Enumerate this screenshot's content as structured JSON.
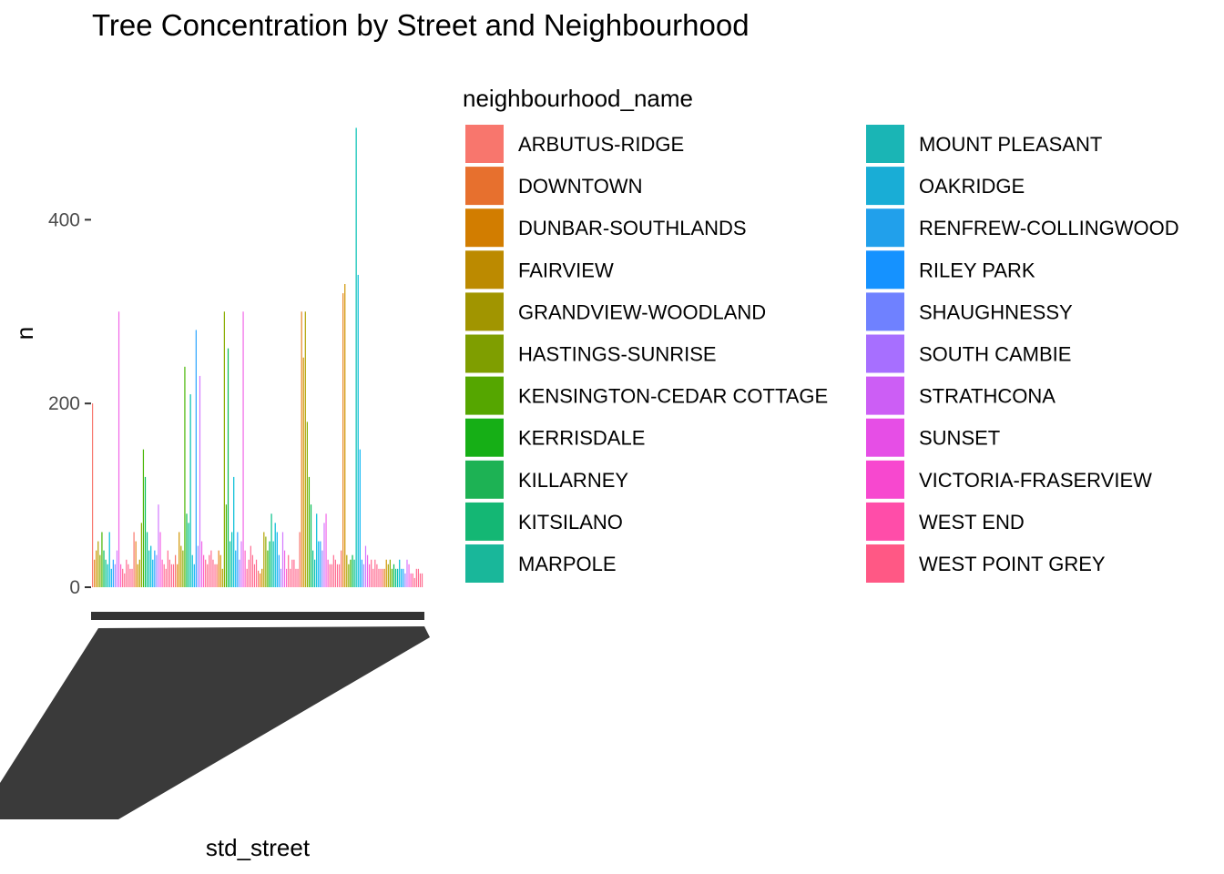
{
  "chart_data": {
    "type": "bar",
    "title": "Tree Concentration by Street and Neighbourhood",
    "xlabel": "std_street",
    "ylabel": "n",
    "ylim": [
      0,
      550
    ],
    "yticks": [
      0,
      200,
      400
    ],
    "legend_title": "neighbourhood_name",
    "legend_position": "right",
    "grid": false,
    "x_tick_labels_overplotted": true,
    "series": [
      {
        "name": "ARBUTUS-RIDGE",
        "color": "#F8766D",
        "values": [
          200,
          60,
          35,
          25,
          18,
          60,
          40,
          20
        ]
      },
      {
        "name": "DOWNTOWN",
        "color": "#E7851E",
        "values": [
          30,
          50,
          25,
          40,
          15,
          300,
          320,
          20
        ]
      },
      {
        "name": "DUNBAR-SOUTHLANDS",
        "color": "#D09400",
        "values": [
          40,
          25,
          60,
          35,
          20,
          250,
          330,
          30
        ]
      },
      {
        "name": "FAIRVIEW",
        "color": "#B2A100",
        "values": [
          50,
          30,
          45,
          20,
          60,
          300,
          35,
          25
        ]
      },
      {
        "name": "GRANDVIEW-WOODLAND",
        "color": "#89AC00",
        "values": [
          35,
          70,
          40,
          300,
          55,
          180,
          25,
          30
        ]
      },
      {
        "name": "HASTINGS-SUNRISE",
        "color": "#45B500",
        "values": [
          60,
          150,
          240,
          90,
          40,
          120,
          30,
          20
        ]
      },
      {
        "name": "KENSINGTON-CEDAR COTTAGE",
        "color": "#00BC51",
        "values": [
          40,
          120,
          80,
          260,
          50,
          90,
          35,
          25
        ]
      },
      {
        "name": "KERRISDALE",
        "color": "#00C087",
        "values": [
          30,
          60,
          70,
          50,
          80,
          40,
          30,
          20
        ]
      },
      {
        "name": "KILLARNEY",
        "color": "#00C0B2",
        "values": [
          25,
          40,
          210,
          60,
          50,
          30,
          500,
          20
        ]
      },
      {
        "name": "KITSILANO",
        "color": "#00BCD6",
        "values": [
          60,
          45,
          35,
          120,
          70,
          80,
          340,
          30
        ]
      },
      {
        "name": "MARPOLE",
        "color": "#00B3F2",
        "values": [
          20,
          30,
          25,
          40,
          60,
          50,
          150,
          20
        ]
      },
      {
        "name": "MOUNT PLEASANT",
        "color": "#29A3FF",
        "values": [
          30,
          40,
          280,
          60,
          35,
          50,
          30,
          20
        ]
      },
      {
        "name": "OAKRIDGE",
        "color": "#9C8DFF",
        "values": [
          25,
          35,
          45,
          30,
          20,
          40,
          25,
          15
        ]
      },
      {
        "name": "RENFREW-COLLINGWOOD",
        "color": "#D277FF",
        "values": [
          40,
          90,
          230,
          50,
          60,
          70,
          45,
          30
        ]
      },
      {
        "name": "RILEY PARK",
        "color": "#F166E8",
        "values": [
          300,
          60,
          50,
          300,
          40,
          80,
          35,
          25
        ]
      },
      {
        "name": "SHAUGHNESSY",
        "color": "#FF61C7",
        "values": [
          25,
          30,
          35,
          40,
          20,
          30,
          25,
          15
        ]
      },
      {
        "name": "SOUTH CAMBIE",
        "color": "#FF6C91",
        "values": [
          20,
          25,
          30,
          20,
          35,
          25,
          30,
          15
        ]
      },
      {
        "name": "STRATHCONA",
        "color": "#FF6C91",
        "values": [
          15,
          20,
          25,
          30,
          20,
          25,
          20,
          10
        ]
      },
      {
        "name": "SUNSET",
        "color": "#FF6C91",
        "values": [
          30,
          40,
          35,
          45,
          30,
          35,
          30,
          20
        ]
      },
      {
        "name": "VICTORIA-FRASERVIEW",
        "color": "#FF6C91",
        "values": [
          25,
          30,
          40,
          35,
          30,
          30,
          25,
          20
        ]
      },
      {
        "name": "WEST END",
        "color": "#FF6C91",
        "values": [
          20,
          25,
          30,
          25,
          20,
          25,
          20,
          15
        ]
      },
      {
        "name": "WEST POINT GREY",
        "color": "#FF6C91",
        "values": [
          20,
          25,
          25,
          30,
          20,
          25,
          20,
          15
        ]
      }
    ]
  },
  "legend_items": [
    {
      "label": "ARBUTUS-RIDGE",
      "color": "#F8766D"
    },
    {
      "label": "DOWNTOWN",
      "color": "#E7702E"
    },
    {
      "label": "DUNBAR-SOUTHLANDS",
      "color": "#D27D00"
    },
    {
      "label": "FAIRVIEW",
      "color": "#BC8A00"
    },
    {
      "label": "GRANDVIEW-WOODLAND",
      "color": "#A19500"
    },
    {
      "label": "HASTINGS-SUNRISE",
      "color": "#7F9E00"
    },
    {
      "label": "KENSINGTON-CEDAR COTTAGE",
      "color": "#55A600"
    },
    {
      "label": "KERRISDALE",
      "color": "#16AF16"
    },
    {
      "label": "KILLARNEY",
      "color": "#1DB254"
    },
    {
      "label": "KITSILANO",
      "color": "#14B774"
    },
    {
      "label": "MARPOLE",
      "color": "#19B79A"
    },
    {
      "label": "MOUNT PLEASANT",
      "color": "#1AB5B5"
    },
    {
      "label": "OAKRIDGE",
      "color": "#19ADD6"
    },
    {
      "label": "RENFREW-COLLINGWOOD",
      "color": "#21A0EB"
    },
    {
      "label": "RILEY PARK",
      "color": "#1592FF"
    },
    {
      "label": "SHAUGHNESSY",
      "color": "#6F81FF"
    },
    {
      "label": "SOUTH CAMBIE",
      "color": "#A76FFF"
    },
    {
      "label": "STRATHCONA",
      "color": "#CC5EF5"
    },
    {
      "label": "SUNSET",
      "color": "#E64EE6"
    },
    {
      "label": "VICTORIA-FRASERVIEW",
      "color": "#F748CF"
    },
    {
      "label": "WEST END",
      "color": "#FF4DA9"
    },
    {
      "label": "WEST POINT GREY",
      "color": "#FF5885"
    }
  ]
}
